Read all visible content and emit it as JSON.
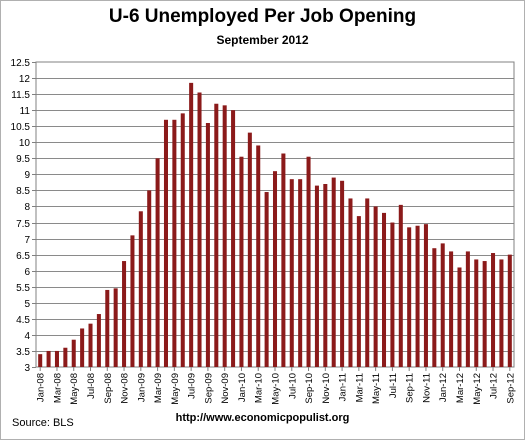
{
  "chart_data": {
    "type": "bar",
    "title": "U-6 Unemployed Per Job Opening",
    "subtitle": "September 2012",
    "xlabel": "",
    "ylabel": "",
    "ylim": [
      3,
      12.5
    ],
    "yticks": [
      "3",
      "3.5",
      "4",
      "4.5",
      "5",
      "5.5",
      "6",
      "6.5",
      "7",
      "7.5",
      "8",
      "8.5",
      "9",
      "9.5",
      "10",
      "10.5",
      "11",
      "11.5",
      "12",
      "12.5"
    ],
    "grid": "horizontal",
    "legend": "none",
    "bar_color": "#8b1a1a",
    "categories": [
      "Jan-08",
      "Feb-08",
      "Mar-08",
      "Apr-08",
      "May-08",
      "Jun-08",
      "Jul-08",
      "Aug-08",
      "Sep-08",
      "Oct-08",
      "Nov-08",
      "Dec-08",
      "Jan-09",
      "Feb-09",
      "Mar-09",
      "Apr-09",
      "May-09",
      "Jun-09",
      "Jul-09",
      "Aug-09",
      "Sep-09",
      "Oct-09",
      "Nov-09",
      "Dec-09",
      "Jan-10",
      "Feb-10",
      "Mar-10",
      "Apr-10",
      "May-10",
      "Jun-10",
      "Jul-10",
      "Aug-10",
      "Sep-10",
      "Oct-10",
      "Nov-10",
      "Dec-10",
      "Jan-11",
      "Feb-11",
      "Mar-11",
      "Apr-11",
      "May-11",
      "Jun-11",
      "Jul-11",
      "Aug-11",
      "Sep-11",
      "Oct-11",
      "Nov-11",
      "Dec-11",
      "Jan-12",
      "Feb-12",
      "Mar-12",
      "Apr-12",
      "May-12",
      "Jun-12",
      "Jul-12",
      "Aug-12",
      "Sep-12"
    ],
    "x_tick_labels": [
      "Jan-08",
      "Mar-08",
      "May-08",
      "Jul-08",
      "Sep-08",
      "Nov-08",
      "Jan-09",
      "Mar-09",
      "May-09",
      "Jul-09",
      "Sep-09",
      "Nov-09",
      "Jan-10",
      "Mar-10",
      "May-10",
      "Jul-10",
      "Sep-10",
      "Nov-10",
      "Jan-11",
      "Mar-11",
      "May-11",
      "Jul-11",
      "Sep-11",
      "Nov-11",
      "Jan-12",
      "Mar-12",
      "May-12",
      "Jul-12",
      "Sep-12"
    ],
    "values": [
      3.4,
      3.5,
      3.5,
      3.6,
      3.85,
      4.2,
      4.35,
      4.65,
      5.4,
      5.45,
      6.3,
      7.1,
      7.85,
      8.5,
      9.5,
      10.7,
      10.7,
      10.9,
      11.85,
      11.55,
      10.6,
      11.2,
      11.15,
      11.0,
      9.55,
      10.3,
      9.9,
      8.45,
      9.1,
      9.65,
      8.85,
      8.85,
      9.55,
      8.65,
      8.7,
      8.9,
      8.8,
      8.25,
      7.7,
      8.25,
      8.0,
      7.8,
      7.5,
      8.05,
      7.35,
      7.4,
      7.45,
      6.7,
      6.85,
      6.6,
      6.1,
      6.6,
      6.35,
      6.3,
      6.55,
      6.35,
      6.5
    ]
  },
  "footer": {
    "source": "Source:  BLS",
    "url": "http://www.economicpopulist.org"
  }
}
